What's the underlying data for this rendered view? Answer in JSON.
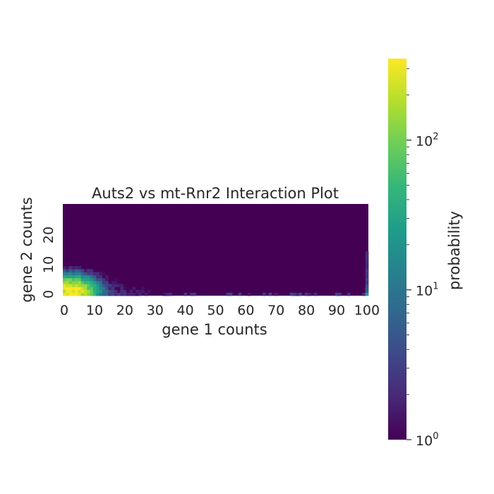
{
  "chart_data": {
    "type": "heatmap",
    "title": "Auts2 vs mt-Rnr2 Interaction Plot",
    "xlabel": "gene 1 counts",
    "ylabel": "gene 2 counts",
    "x_range": [
      0,
      100
    ],
    "y_range": [
      0,
      30
    ],
    "x_ticks": [
      "0",
      "10",
      "20",
      "30",
      "40",
      "50",
      "60",
      "70",
      "80",
      "90",
      "100"
    ],
    "y_ticks": [
      "0",
      "10",
      "20"
    ],
    "colormap": "viridis",
    "colorbar": {
      "label": "probability",
      "scale": "log",
      "range": [
        1,
        350
      ],
      "major_ticks": [
        {
          "base": "10",
          "exp": "0",
          "value": 1
        },
        {
          "base": "10",
          "exp": "1",
          "value": 10
        },
        {
          "base": "10",
          "exp": "2",
          "value": 100
        }
      ]
    },
    "peak": {
      "x": 2,
      "y": 1,
      "value": 350
    },
    "empty_color": "#440154"
  }
}
